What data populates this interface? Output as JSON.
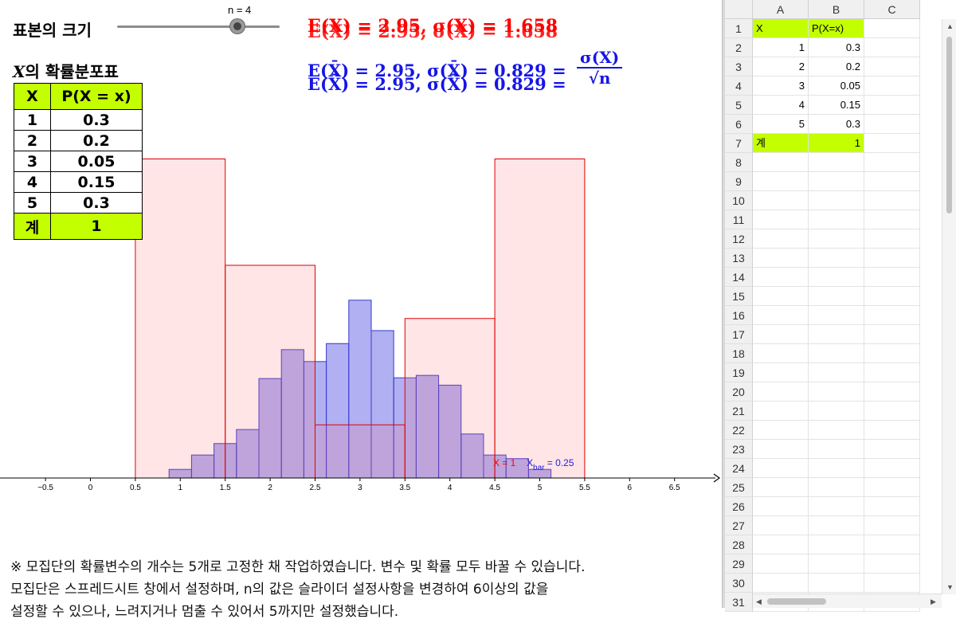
{
  "slider": {
    "label": "표본의 크기",
    "value_text": "n = 4",
    "min": 1,
    "max": 5,
    "value": 4
  },
  "formulas": {
    "population": "E(X) = 2.95,  σ(X) = 1.658",
    "sample_mean": "E(X̄) = 2.95,  σ(X̄) = 0.829 =",
    "sample_mean_frac_num": "σ(X)",
    "sample_mean_frac_den": "√n"
  },
  "dist_table": {
    "title_var": "X",
    "title_rest": "의 확률분포표",
    "header": [
      "X",
      "P(X = x)"
    ],
    "rows": [
      [
        "1",
        "0.3"
      ],
      [
        "2",
        "0.2"
      ],
      [
        "3",
        "0.05"
      ],
      [
        "4",
        "0.15"
      ],
      [
        "5",
        "0.3"
      ]
    ],
    "total": [
      "계",
      "1"
    ]
  },
  "chart_data": {
    "type": "bar",
    "x_axis_ticks": [
      "−0.5",
      "0",
      "0.5",
      "1",
      "1.5",
      "2",
      "2.5",
      "3",
      "3.5",
      "4",
      "4.5",
      "5",
      "5.5",
      "6",
      "6.5"
    ],
    "xlim": [
      -1,
      7
    ],
    "series": [
      {
        "color": "#ff0000",
        "x": [
          1,
          2,
          3,
          4,
          5
        ],
        "values": [
          0.3,
          0.2,
          0.05,
          0.15,
          0.3
        ],
        "bar_width": 1
      },
      {
        "color": "#4a4ae6",
        "x": [
          1,
          1.25,
          1.5,
          1.75,
          2,
          2.25,
          2.5,
          2.75,
          3,
          3.25,
          3.5,
          3.75,
          4,
          4.25,
          4.5,
          4.75,
          5
        ],
        "values": [
          0.0081,
          0.0216,
          0.0324,
          0.0456,
          0.0935,
          0.1207,
          0.1095,
          0.1264,
          0.1672,
          0.1386,
          0.0942,
          0.0965,
          0.0873,
          0.0414,
          0.0216,
          0.0182,
          0.0081
        ],
        "bar_width": 0.25
      }
    ],
    "annotations": {
      "red_label": "X = 1",
      "blue_label_prefix": "X",
      "blue_label_sub": "bar",
      "blue_label_suffix": " = 0.25"
    }
  },
  "footnote": {
    "line1": "※ 모집단의 확률변수의 개수는 5개로 고정한 채 작업하였습니다. 변수 및 확률 모두 바꿀 수 있습니다.",
    "line2": "모집단은 스프레드시트 창에서 설정하며, n의 값은 슬라이더 설정사항을 변경하여 6이상의 값을",
    "line3": "설정할 수 있으나, 느려지거나 멈출 수 있어서 5까지만 설정했습니다."
  },
  "spreadsheet": {
    "columns": [
      "A",
      "B",
      "C"
    ],
    "rows": [
      {
        "n": "1",
        "a": "X",
        "b": "P(X=x)",
        "hl": true,
        "text": true
      },
      {
        "n": "2",
        "a": "1",
        "b": "0.3"
      },
      {
        "n": "3",
        "a": "2",
        "b": "0.2"
      },
      {
        "n": "4",
        "a": "3",
        "b": "0.05"
      },
      {
        "n": "5",
        "a": "4",
        "b": "0.15"
      },
      {
        "n": "6",
        "a": "5",
        "b": "0.3"
      },
      {
        "n": "7",
        "a": "계",
        "b": "1",
        "hl": true,
        "total": true
      },
      {
        "n": "8"
      },
      {
        "n": "9"
      },
      {
        "n": "10"
      },
      {
        "n": "11"
      },
      {
        "n": "12"
      },
      {
        "n": "13"
      },
      {
        "n": "14"
      },
      {
        "n": "15"
      },
      {
        "n": "16"
      },
      {
        "n": "17"
      },
      {
        "n": "18"
      },
      {
        "n": "19"
      },
      {
        "n": "20"
      },
      {
        "n": "21"
      },
      {
        "n": "22"
      },
      {
        "n": "23"
      },
      {
        "n": "24"
      },
      {
        "n": "25"
      },
      {
        "n": "26"
      },
      {
        "n": "27"
      },
      {
        "n": "28"
      },
      {
        "n": "29"
      },
      {
        "n": "30"
      },
      {
        "n": "31"
      }
    ]
  },
  "colors": {
    "highlight": "#c4ff00",
    "red": "#ff0000",
    "blue": "#1515e6"
  }
}
